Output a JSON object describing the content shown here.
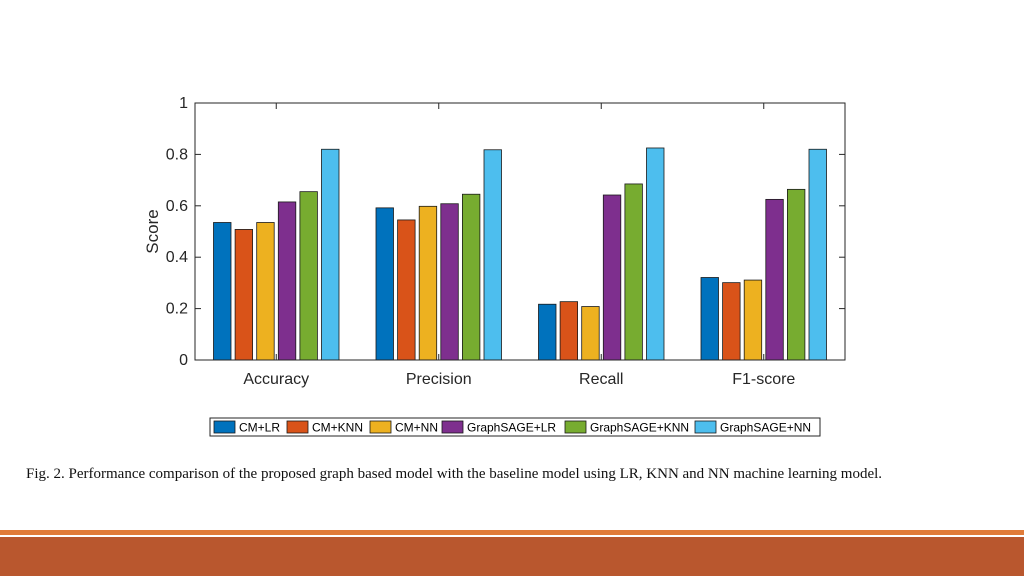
{
  "chart_data": {
    "type": "bar",
    "categories": [
      "Accuracy",
      "Precision",
      "Recall",
      "F1-score"
    ],
    "series": [
      {
        "name": "CM+LR",
        "color": "#0072BD",
        "values": [
          0.535,
          0.592,
          0.217,
          0.321
        ]
      },
      {
        "name": "CM+KNN",
        "color": "#D95319",
        "values": [
          0.508,
          0.545,
          0.227,
          0.301
        ]
      },
      {
        "name": "CM+NN",
        "color": "#EDB120",
        "values": [
          0.535,
          0.598,
          0.208,
          0.311
        ]
      },
      {
        "name": "GraphSAGE+LR",
        "color": "#7E2F8E",
        "values": [
          0.615,
          0.608,
          0.642,
          0.625
        ]
      },
      {
        "name": "GraphSAGE+KNN",
        "color": "#77AC30",
        "values": [
          0.655,
          0.645,
          0.685,
          0.664
        ]
      },
      {
        "name": "GraphSAGE+NN",
        "color": "#4DBEEE",
        "values": [
          0.82,
          0.818,
          0.825,
          0.82
        ]
      }
    ],
    "ylabel": "Score",
    "xlabel": "",
    "ylim": [
      0,
      1
    ],
    "yticks": [
      "0",
      "0.2",
      "0.4",
      "0.6",
      "0.8",
      "1"
    ],
    "legend_position": "bottom",
    "grid": false
  },
  "caption": "Fig. 2.  Performance comparison of the proposed graph based model with the baseline model using LR, KNN and NN machine learning model.",
  "colors": {
    "slide_stripe": "#B9572E",
    "slide_stripe_thin": "#E07B39"
  }
}
